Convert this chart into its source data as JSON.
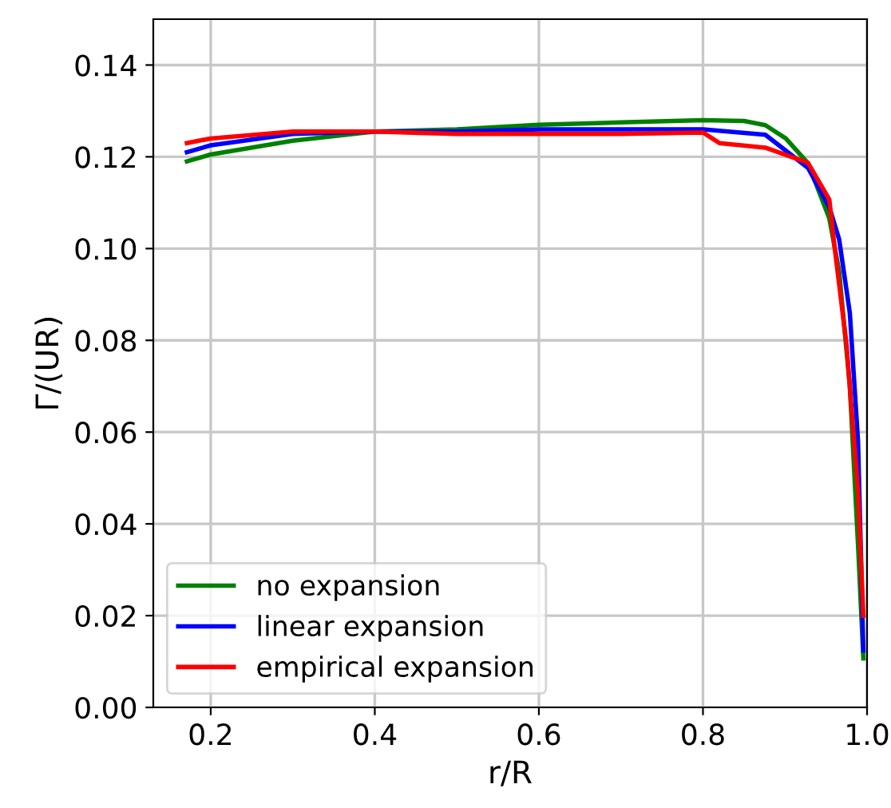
{
  "chart_data": {
    "type": "line",
    "xlabel": "r/R",
    "ylabel": "Γ/(UR)",
    "xlim": [
      0.13,
      1.0
    ],
    "ylim": [
      0,
      0.15
    ],
    "xticks": [
      {
        "value": 0.2,
        "label": "0.2"
      },
      {
        "value": 0.4,
        "label": "0.4"
      },
      {
        "value": 0.6,
        "label": "0.6"
      },
      {
        "value": 0.8,
        "label": "0.8"
      },
      {
        "value": 1.0,
        "label": "1.0"
      }
    ],
    "yticks": [
      {
        "value": 0,
        "label": "0.00"
      },
      {
        "value": 0.02,
        "label": "0.02"
      },
      {
        "value": 0.04,
        "label": "0.04"
      },
      {
        "value": 0.06,
        "label": "0.06"
      },
      {
        "value": 0.08,
        "label": "0.08"
      },
      {
        "value": 0.1,
        "label": "0.10"
      },
      {
        "value": 0.12,
        "label": "0.12"
      },
      {
        "value": 0.14,
        "label": "0.14"
      }
    ],
    "grid": true,
    "legend": "bottom left",
    "line_style": "solid",
    "marker": "none",
    "series": [
      {
        "name": "no expansion",
        "color": "#008000",
        "x": [
          0.171,
          0.2,
          0.3,
          0.4,
          0.5,
          0.6,
          0.7,
          0.8,
          0.85,
          0.876,
          0.901,
          0.928,
          0.954,
          0.966,
          0.979,
          0.989,
          0.9955
        ],
        "values": [
          0.119,
          0.1205,
          0.1235,
          0.1255,
          0.126,
          0.127,
          0.1275,
          0.128,
          0.1278,
          0.1269,
          0.124,
          0.1186,
          0.1066,
          0.095,
          0.07,
          0.0355,
          0.0107
        ]
      },
      {
        "name": "linear expansion",
        "color": "#0000ff",
        "x": [
          0.171,
          0.2,
          0.3,
          0.4,
          0.5,
          0.6,
          0.7,
          0.8,
          0.876,
          0.928,
          0.954,
          0.966,
          0.979,
          0.989,
          0.9955
        ],
        "values": [
          0.121,
          0.1225,
          0.125,
          0.1255,
          0.1255,
          0.126,
          0.126,
          0.126,
          0.1248,
          0.1176,
          0.109,
          0.102,
          0.086,
          0.058,
          0.0124
        ]
      },
      {
        "name": "empirical expansion",
        "color": "#ff0000",
        "x": [
          0.171,
          0.2,
          0.3,
          0.4,
          0.5,
          0.6,
          0.7,
          0.8,
          0.82,
          0.876,
          0.928,
          0.954,
          0.96,
          0.975,
          0.989,
          0.9955
        ],
        "values": [
          0.123,
          0.124,
          0.1255,
          0.1255,
          0.125,
          0.125,
          0.125,
          0.1253,
          0.123,
          0.122,
          0.1187,
          0.1107,
          0.101,
          0.079,
          0.047,
          0.02
        ]
      }
    ]
  }
}
